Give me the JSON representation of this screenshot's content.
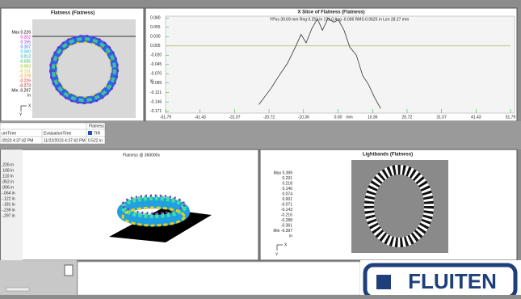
{
  "flatness_panel": {
    "title": "Flatness (Flatness)",
    "scale": [
      "Max 0.226",
      "0.202",
      "0.155",
      "0.107",
      "0.060",
      "0.012",
      "-0.035",
      "-0.083",
      "-0.131",
      "-0.178",
      "-0.226",
      "-0.273",
      "Min -0.297",
      "in"
    ],
    "scale_colors": [
      "#000000",
      "#e000e0",
      "#8a2be2",
      "#2040ff",
      "#00b0e0",
      "#00a0a0",
      "#20b040",
      "#90c000",
      "#d0c000",
      "#f08000",
      "#e02020",
      "#a00000",
      "#000000",
      "#000000"
    ],
    "axis_x": "X",
    "axis_y": "Y"
  },
  "chart_data": {
    "type": "line",
    "title": "X Slice of Flatness (Flatness)",
    "subtitle": "YPos 39.69 mm Rng 0.251 in 171.0 Avg -0.006 RMS 0.0625 in Len 28.27 mm",
    "x_label": "mm",
    "y_label": "in",
    "x": [
      -23.8,
      -20.1,
      -17.7,
      -15.2,
      -12.8,
      -11.1,
      -9.6,
      -7.9,
      -6.2,
      -4.7,
      -3.0,
      -1.3,
      0.1,
      1.8,
      3.5,
      5.5,
      7.4,
      9.1,
      10.8,
      12.8
    ],
    "series": [
      {
        "name": "Slice",
        "color": "#333333",
        "values": [
          -0.153,
          -0.109,
          -0.075,
          -0.042,
          0.002,
          0.036,
          0.013,
          0.051,
          0.078,
          0.047,
          0.079,
          0.069,
          0.075,
          0.047,
          0.002,
          -0.02,
          -0.075,
          -0.098,
          -0.131,
          -0.164
        ]
      }
    ],
    "reference_line": 0.005,
    "reference_color": "#b8b860",
    "xlim": [
      -51.79,
      51.79
    ],
    "xticks": [
      -51.79,
      -41.43,
      -31.07,
      -20.72,
      -10.36,
      {
        "value": 0,
        "label": "0.00"
      },
      10.36,
      20.72,
      31.07,
      41.43,
      51.79
    ],
    "ylim": [
      -0.176,
      0.085
    ],
    "yticks": [
      {
        "value": 0.08,
        "label": "0.080"
      },
      0.055,
      {
        "value": 0.03,
        "label": "0.030"
      },
      0.005,
      {
        "value": -0.02,
        "label": "-0.020"
      },
      -0.045,
      {
        "value": -0.07,
        "label": "-0.070"
      },
      -0.095,
      -0.121,
      -0.146,
      -0.171
    ],
    "tick_color": "#40b040"
  },
  "results_table": {
    "header": "Flatness",
    "columns": [
      "ureTime",
      "EvaluationTime",
      "TIR"
    ],
    "row": [
      "/2023 4:37:42 PM",
      "11/22/2023 4:37:42 PM",
      "0.522 in"
    ]
  },
  "surface_panel": {
    "title": "Flatness @ 360000x",
    "scale": [
      ".226 in",
      ".168 in",
      ".110 in",
      ".052 in",
      ".006 in",
      "-.064 in",
      "-.122 in",
      "-.181 in",
      "-.239 in",
      "-.297 in"
    ]
  },
  "lightbands_panel": {
    "title": "Lightbands (Flatness)",
    "scale": [
      "Max 0.399",
      "0.291",
      "0.218",
      "0.146",
      "0.074",
      "0.001",
      "-0.071",
      "-0.143",
      "-0.216",
      "-0.288",
      "-0.361",
      "Min -0.397",
      "in"
    ],
    "axis_x": "X",
    "axis_y": "Y"
  },
  "logo": "FLUITEN"
}
